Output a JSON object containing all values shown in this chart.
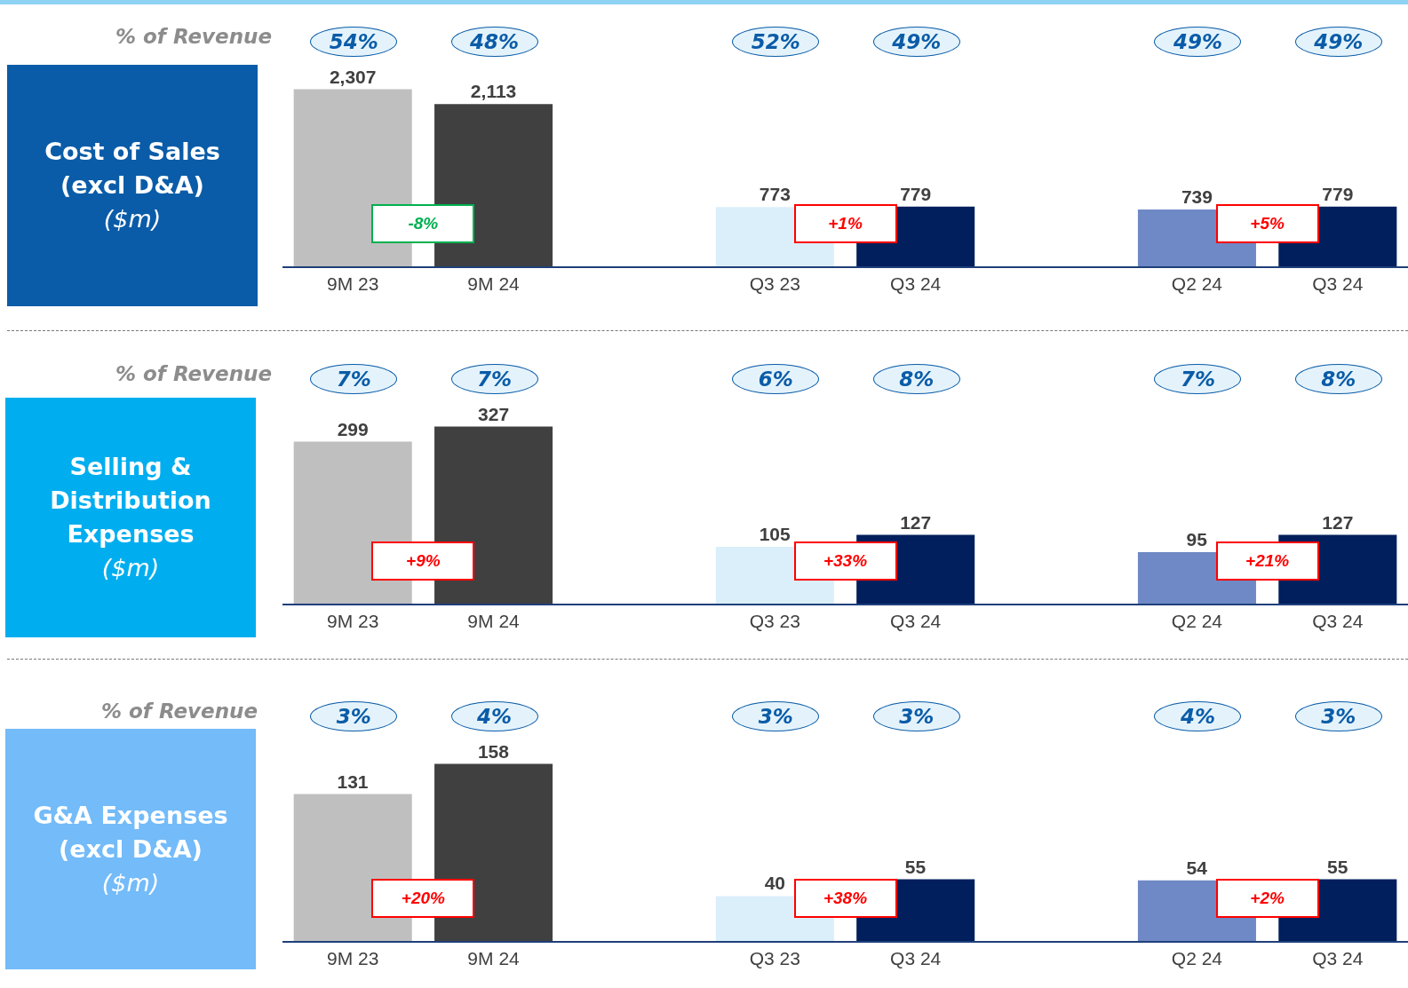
{
  "chart_data": [
    {
      "type": "bar",
      "title": "Cost of Sales (excl D&A)",
      "subtitle": "($m)",
      "categories": [
        "9M 23",
        "9M 24",
        null,
        "Q3 23",
        "Q3 24",
        null,
        "Q2 24",
        "Q3 24"
      ],
      "values": [
        2307,
        2113,
        null,
        773,
        779,
        null,
        739,
        779
      ],
      "colors": [
        "#bfbfbf",
        "#404040",
        null,
        "#dbeffb",
        "#001f5c",
        null,
        "#6f89c6",
        "#001f5c"
      ],
      "value_labels": [
        "2,307",
        "2,113",
        null,
        "773",
        "779",
        null,
        "739",
        "779"
      ],
      "tick_labels": "x",
      "grid": false,
      "legend": false,
      "annotations": [
        "% of Revenue",
        "54%",
        "48%",
        "52%",
        "49%",
        "49%",
        "49%",
        "-8%",
        "+1%",
        "+5%"
      ]
    },
    {
      "type": "bar",
      "title": "Selling & Distribution Expenses",
      "subtitle": "($m)",
      "categories": [
        "9M 23",
        "9M 24",
        null,
        "Q3 23",
        "Q3 24",
        null,
        "Q2 24",
        "Q3 24"
      ],
      "values": [
        299,
        327,
        null,
        105,
        127,
        null,
        95,
        127
      ],
      "colors": [
        "#bfbfbf",
        "#404040",
        null,
        "#dbeffb",
        "#001f5c",
        null,
        "#6f89c6",
        "#001f5c"
      ],
      "data_labels": true,
      "tick_labels": "x",
      "grid": false,
      "legend": false,
      "annotations": [
        "% of Revenue",
        "7%",
        "7%",
        "6%",
        "8%",
        "7%",
        "8%",
        "+9%",
        "+33%",
        "+21%"
      ]
    },
    {
      "type": "bar",
      "title": "G&A Expenses (excl D&A)",
      "subtitle": "($m)",
      "categories": [
        "9M 23",
        "9M 24",
        null,
        "Q3 23",
        "Q3 24",
        null,
        "Q2 24",
        "Q3 24"
      ],
      "values": [
        131,
        158,
        null,
        40,
        55,
        null,
        54,
        55
      ],
      "colors": [
        "#bfbfbf",
        "#404040",
        null,
        "#dbeffb",
        "#001f5c",
        null,
        "#6f89c6",
        "#001f5c"
      ],
      "data_labels": true,
      "tick_labels": "x",
      "grid": false,
      "legend": false,
      "annotations": [
        "% of Revenue",
        "3%",
        "4%",
        "3%",
        "3%",
        "4%",
        "3%",
        "+20%",
        "+38%",
        "+2%"
      ]
    }
  ]
}
